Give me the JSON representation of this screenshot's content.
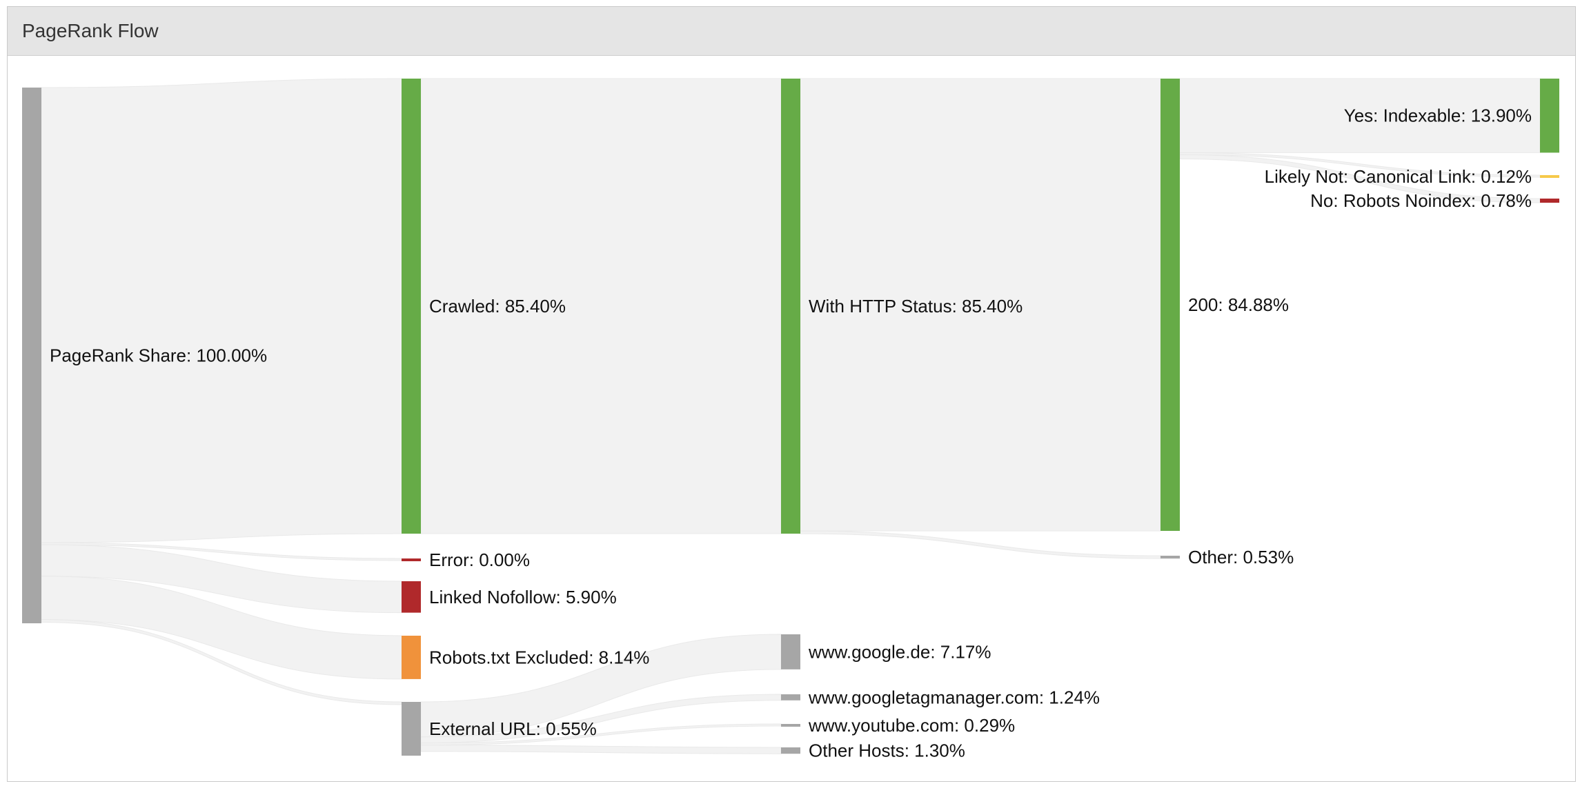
{
  "panel": {
    "title": "PageRank Flow"
  },
  "colors": {
    "gray": "#a6a6a6",
    "green": "#66ab47",
    "red": "#b0292b",
    "orange": "#f0923b",
    "yellow": "#f6c94a",
    "link": "#f2f2f2"
  },
  "chart_data": {
    "type": "sankey",
    "title": "PageRank Flow",
    "unit": "%",
    "nodes": [
      {
        "id": "share",
        "label": "PageRank Share: 100.00%",
        "value": 100.0,
        "color": "gray"
      },
      {
        "id": "crawled",
        "label": "Crawled: 85.40%",
        "value": 85.4,
        "color": "green"
      },
      {
        "id": "error",
        "label": "Error: 0.00%",
        "value": 0.0,
        "color": "red"
      },
      {
        "id": "nofollow",
        "label": "Linked Nofollow: 5.90%",
        "value": 5.9,
        "color": "red"
      },
      {
        "id": "robots",
        "label": "Robots.txt Excluded: 8.14%",
        "value": 8.14,
        "color": "orange"
      },
      {
        "id": "external",
        "label": "External URL: 0.55%",
        "value": 0.55,
        "color": "gray"
      },
      {
        "id": "http",
        "label": "With HTTP Status: 85.40%",
        "value": 85.4,
        "color": "green"
      },
      {
        "id": "google",
        "label": "www.google.de: 7.17%",
        "value": 7.17,
        "color": "gray"
      },
      {
        "id": "gtm",
        "label": "www.googletagmanager.com: 1.24%",
        "value": 1.24,
        "color": "gray"
      },
      {
        "id": "youtube",
        "label": "www.youtube.com: 0.29%",
        "value": 0.29,
        "color": "gray"
      },
      {
        "id": "otherhosts",
        "label": "Other Hosts: 1.30%",
        "value": 1.3,
        "color": "gray"
      },
      {
        "id": "s200",
        "label": "200: 84.88%",
        "value": 84.88,
        "color": "green"
      },
      {
        "id": "other",
        "label": "Other: 0.53%",
        "value": 0.53,
        "color": "gray"
      },
      {
        "id": "indexable",
        "label": "Yes: Indexable: 13.90%",
        "value": 13.9,
        "color": "green"
      },
      {
        "id": "canonical",
        "label": "Likely Not: Canonical Link: 0.12%",
        "value": 0.12,
        "color": "yellow"
      },
      {
        "id": "noindex",
        "label": "No: Robots Noindex: 0.78%",
        "value": 0.78,
        "color": "red"
      }
    ],
    "links": [
      {
        "source": "share",
        "target": "crawled",
        "value": 85.4
      },
      {
        "source": "share",
        "target": "error",
        "value": 0.0
      },
      {
        "source": "share",
        "target": "nofollow",
        "value": 5.9
      },
      {
        "source": "share",
        "target": "robots",
        "value": 8.14
      },
      {
        "source": "share",
        "target": "external",
        "value": 0.55
      },
      {
        "source": "crawled",
        "target": "http",
        "value": 85.4
      },
      {
        "source": "external",
        "target": "google",
        "value": 7.17
      },
      {
        "source": "external",
        "target": "gtm",
        "value": 1.24
      },
      {
        "source": "external",
        "target": "youtube",
        "value": 0.29
      },
      {
        "source": "external",
        "target": "otherhosts",
        "value": 1.3
      },
      {
        "source": "http",
        "target": "s200",
        "value": 84.88
      },
      {
        "source": "http",
        "target": "other",
        "value": 0.53
      },
      {
        "source": "s200",
        "target": "indexable",
        "value": 13.9
      },
      {
        "source": "s200",
        "target": "canonical",
        "value": 0.12
      },
      {
        "source": "s200",
        "target": "noindex",
        "value": 0.78
      }
    ]
  }
}
